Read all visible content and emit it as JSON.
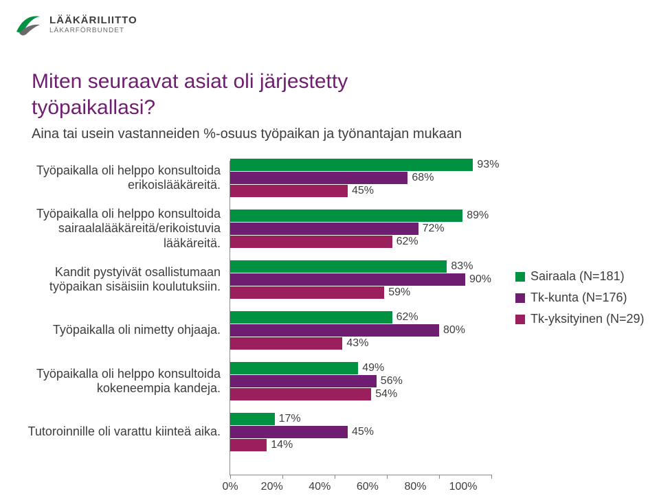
{
  "logo": {
    "top": "LÄÄKÄRILIITTO",
    "bot": "LÄKARFÖRBUNDET"
  },
  "title": "Miten seuraavat asiat oli järjestetty työpaikallasi?",
  "subtitle": "Aina tai usein vastanneiden %-osuus työpaikan ja työnantajan mukaan",
  "series_colors": [
    "#009241",
    "#6f1d70",
    "#9c1f5d"
  ],
  "background_color": "#ffffff",
  "label_fontsize": 18,
  "value_fontsize": 16,
  "xaxis": {
    "min": 0,
    "max": 100,
    "step": 20,
    "format_suffix": "%"
  },
  "categories": [
    {
      "label": "Työpaikalla oli helppo konsultoida erikoislääkäreitä.",
      "values": [
        93,
        68,
        45
      ]
    },
    {
      "label": "Työpaikalla oli helppo konsultoida sairaalalääkäreitä/erikoistuvia lääkäreitä.",
      "values": [
        89,
        72,
        62
      ]
    },
    {
      "label": "Kandit pystyivät osallistumaan työpaikan sisäisiin koulutuksiin.",
      "values": [
        83,
        90,
        59
      ]
    },
    {
      "label": "Työpaikalla oli nimetty ohjaaja.",
      "values": [
        62,
        80,
        43
      ]
    },
    {
      "label": "Työpaikalla oli helppo konsultoida kokeneempia kandeja.",
      "values": [
        49,
        56,
        54
      ]
    },
    {
      "label": "Tutoroinnille oli varattu kiinteä aika.",
      "values": [
        17,
        45,
        14
      ]
    }
  ],
  "legend": [
    {
      "label": "Sairaala (N=181)",
      "color": "#009241"
    },
    {
      "label": "Tk-kunta (N=176)",
      "color": "#6f1d70"
    },
    {
      "label": "Tk-yksityinen (N=29)",
      "color": "#9c1f5d"
    }
  ]
}
